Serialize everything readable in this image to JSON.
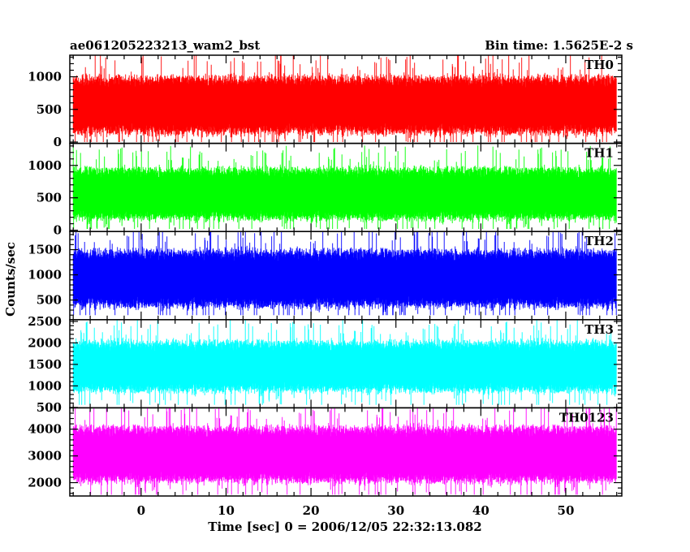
{
  "header": {
    "title": "ae061205223213_wam2_bst",
    "bin_time": "Bin time: 1.5625E-2 s"
  },
  "chart_data": {
    "type": "line",
    "title": "ae061205223213_wam2_bst",
    "xlabel": "Time [sec] 0 = 2006/12/05 22:32:13.082",
    "ylabel": "Counts/sec",
    "xlim": [
      -8.4,
      56.6
    ],
    "x_ticks": [
      0,
      10,
      20,
      30,
      40,
      50
    ],
    "x_tick_labels": [
      "0",
      "10",
      "20",
      "30",
      "40",
      "50"
    ],
    "data_range": [
      -8.0,
      56.0
    ],
    "bin_width": 0.015625,
    "grid": false,
    "legend": "none",
    "panels": [
      {
        "name": "TH0",
        "color": "#ff0000",
        "ylim": [
          -20,
          1330
        ],
        "y_ticks": [
          0,
          500,
          1000
        ],
        "y_tick_labels": [
          "0",
          "500",
          "1000"
        ],
        "typical_min": 80,
        "typical_max": 1050,
        "min": 0,
        "max": 1330
      },
      {
        "name": "TH1",
        "color": "#00ff00",
        "ylim": [
          -20,
          1340
        ],
        "y_ticks": [
          0,
          500,
          1000
        ],
        "y_tick_labels": [
          "0",
          "500",
          "1000"
        ],
        "typical_min": 120,
        "typical_max": 1000,
        "min": 20,
        "max": 1340
      },
      {
        "name": "TH2",
        "color": "#0000ff",
        "ylim": [
          110,
          1860
        ],
        "y_ticks": [
          500,
          1000,
          1500
        ],
        "y_tick_labels": [
          "500",
          "1000",
          "1500"
        ],
        "typical_min": 300,
        "typical_max": 1550,
        "min": 200,
        "max": 1860
      },
      {
        "name": "TH3",
        "color": "#00ffff",
        "ylim": [
          490,
          2540
        ],
        "y_ticks": [
          500,
          1000,
          1500,
          2000,
          2500
        ],
        "y_tick_labels": [
          "500",
          "1000",
          "1500",
          "2000",
          "2500"
        ],
        "typical_min": 800,
        "typical_max": 2100,
        "min": 560,
        "max": 2540
      },
      {
        "name": "TH0123",
        "color": "#ff00ff",
        "ylim": [
          1500,
          4800
        ],
        "y_ticks": [
          2000,
          3000,
          4000
        ],
        "y_tick_labels": [
          "2000",
          "3000",
          "4000"
        ],
        "typical_min": 1900,
        "typical_max": 4200,
        "min": 1550,
        "max": 4800
      }
    ]
  }
}
